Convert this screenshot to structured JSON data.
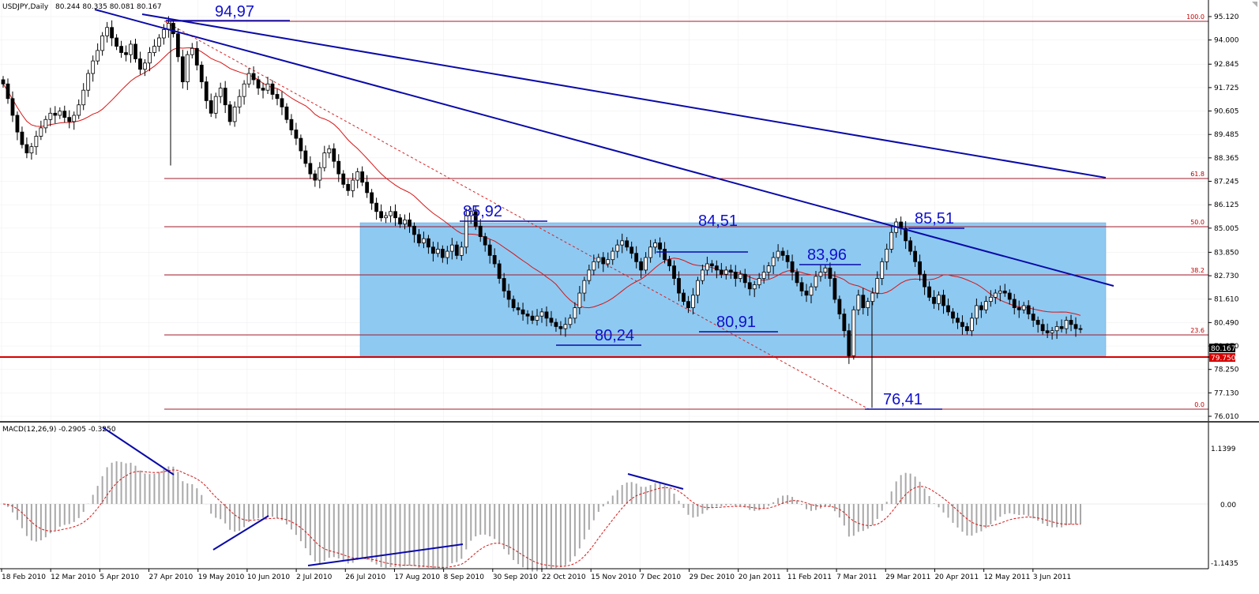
{
  "chart_data": [
    {
      "type": "candlestick",
      "header": {
        "symbol": "USDJPY,Daily",
        "ohlc": "80.244 80.335 80.081 80.167"
      },
      "price_axis": {
        "ylim": [
          76.01,
          95.12
        ],
        "ticks": [
          "95.120",
          "94.000",
          "92.845",
          "91.725",
          "90.605",
          "89.485",
          "88.365",
          "87.245",
          "86.125",
          "85.005",
          "83.850",
          "82.730",
          "81.610",
          "80.490",
          "79.370",
          "78.250",
          "77.130",
          "76.010"
        ]
      },
      "current_price": "80.167",
      "support_price": "79.750",
      "fibonacci": [
        {
          "label": "100.0",
          "price": 95.0
        },
        {
          "label": "61.8",
          "price": 88.1
        },
        {
          "label": "50.0",
          "price": 85.9
        },
        {
          "label": "38.2",
          "price": 83.8
        },
        {
          "label": "23.6",
          "price": 80.9
        },
        {
          "label": "0.0",
          "price": 76.3
        }
      ],
      "annotations": [
        "94,97",
        "85,92",
        "84,51",
        "83,96",
        "80,91",
        "80,24",
        "85,51",
        "76,41"
      ],
      "closes": [
        91.9,
        91.2,
        90.4,
        89.6,
        89.0,
        88.6,
        88.9,
        89.4,
        89.8,
        90.2,
        90.5,
        90.4,
        90.6,
        90.3,
        90.1,
        90.4,
        90.9,
        91.6,
        92.4,
        93.0,
        93.5,
        94.2,
        94.6,
        94.1,
        93.7,
        93.4,
        93.3,
        93.8,
        93.1,
        92.6,
        92.9,
        93.4,
        93.7,
        94.1,
        94.5,
        94.8,
        94.3,
        93.2,
        92.0,
        93.3,
        93.6,
        92.8,
        92.0,
        91.1,
        90.5,
        91.3,
        91.7,
        90.9,
        90.1,
        90.8,
        91.3,
        91.9,
        92.4,
        92.1,
        91.7,
        91.6,
        91.9,
        91.4,
        91.2,
        90.8,
        90.2,
        89.7,
        89.3,
        88.7,
        88.1,
        87.6,
        87.3,
        87.9,
        88.6,
        88.8,
        88.2,
        87.6,
        87.1,
        86.8,
        87.3,
        87.7,
        87.2,
        86.7,
        86.2,
        85.8,
        85.5,
        85.6,
        85.8,
        85.5,
        85.2,
        85.4,
        85.1,
        84.7,
        84.3,
        84.5,
        84.1,
        83.8,
        84.0,
        83.6,
        83.9,
        84.2,
        83.7,
        84.1,
        85.6,
        85.8,
        85.1,
        84.6,
        84.2,
        83.7,
        83.3,
        82.6,
        82.0,
        81.6,
        81.2,
        81.1,
        80.9,
        80.8,
        80.6,
        80.8,
        81.0,
        80.7,
        80.5,
        80.3,
        80.2,
        80.4,
        80.7,
        81.2,
        81.9,
        82.5,
        83.0,
        83.4,
        83.6,
        83.3,
        83.5,
        83.9,
        84.2,
        84.4,
        84.1,
        83.8,
        83.4,
        83.0,
        83.6,
        84.1,
        84.3,
        84.0,
        83.5,
        83.2,
        82.6,
        81.9,
        81.5,
        81.2,
        81.8,
        82.5,
        83.0,
        83.3,
        83.2,
        83.0,
        82.8,
        83.0,
        82.9,
        82.6,
        82.8,
        82.4,
        82.1,
        82.3,
        82.6,
        82.9,
        83.2,
        83.6,
        83.9,
        83.7,
        83.4,
        82.9,
        82.4,
        82.0,
        81.8,
        82.2,
        82.7,
        82.9,
        83.1,
        82.6,
        81.6,
        80.9,
        80.1,
        78.9,
        81.1,
        81.8,
        81.2,
        81.5,
        81.9,
        82.6,
        83.4,
        84.0,
        84.8,
        85.3,
        85.0,
        84.4,
        83.9,
        83.4,
        82.8,
        82.2,
        81.7,
        81.4,
        81.8,
        81.3,
        81.0,
        80.7,
        80.5,
        80.3,
        80.1,
        80.7,
        81.3,
        81.1,
        81.5,
        81.7,
        81.9,
        82.0,
        81.9,
        81.6,
        81.2,
        81.1,
        81.3,
        80.9,
        80.6,
        80.4,
        80.1,
        80.0,
        80.1,
        80.3,
        80.2,
        80.6,
        80.4,
        80.2,
        80.167
      ],
      "ma_period": 20,
      "x_labels": [
        "18 Feb 2010",
        "12 Mar 2010",
        "5 Apr 2010",
        "27 Apr 2010",
        "19 May 2010",
        "10 Jun 2010",
        "2 Jul 2010",
        "26 Jul 2010",
        "17 Aug 2010",
        "8 Sep 2010",
        "30 Sep 2010",
        "22 Oct 2010",
        "15 Nov 2010",
        "7 Dec 2010",
        "29 Dec 2010",
        "20 Jan 2011",
        "11 Feb 2011",
        "7 Mar 2011",
        "29 Mar 2011",
        "20 Apr 2011",
        "12 May 2011",
        "3 Jun 2011"
      ]
    },
    {
      "type": "macd",
      "label": "MACD(12,26,9) -0.2905 -0.3250",
      "ylim": [
        -1.1435,
        1.1399
      ],
      "ticks": [
        "1.1399",
        "0.00",
        "-1.1435"
      ]
    }
  ]
}
